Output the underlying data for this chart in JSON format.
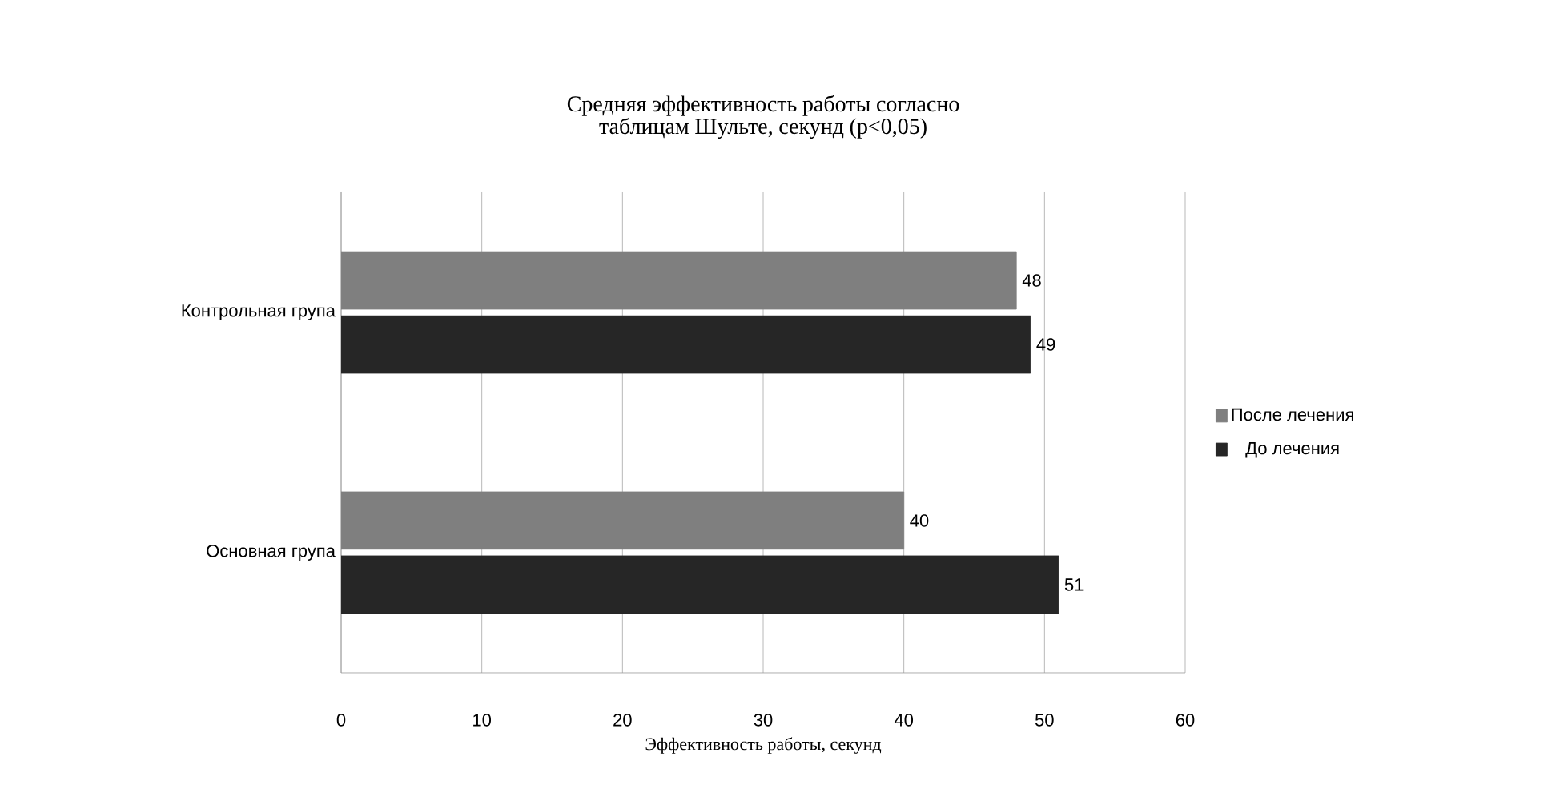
{
  "chart_data": {
    "type": "bar",
    "orientation": "horizontal",
    "title": "Средняя эффективность работы согласно таблицам Шульте, секунд   (p<0,05)",
    "xlabel": "Эффективность работы, секунд",
    "categories": [
      "Контрольная група",
      "Основная група"
    ],
    "series": [
      {
        "name": "После лечения",
        "color": "#7f7f7f",
        "values": [
          48,
          40
        ],
        "value_labels": [
          "48",
          "40"
        ]
      },
      {
        "name": "До лечения",
        "color": "#262626",
        "values": [
          49,
          51
        ],
        "value_labels": [
          "49",
          "51"
        ]
      }
    ],
    "xlim": [
      0,
      60
    ],
    "xticks": [
      0,
      10,
      20,
      30,
      40,
      50,
      60
    ],
    "grid": "x",
    "legend": "right"
  }
}
